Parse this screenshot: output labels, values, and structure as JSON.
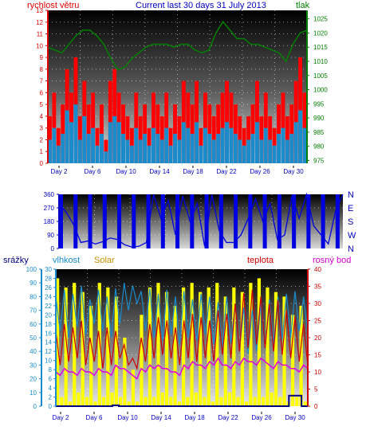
{
  "header": {
    "title": "Current last 30 days 31 July 2013",
    "left_label": "rychlost větru",
    "right_label": "tlak"
  },
  "bottom_header": {
    "rain": "srážky",
    "humidity": "vlhkost",
    "solar": "Solar",
    "temperature": "teplota",
    "dewpoint": "rosný bod"
  },
  "colors": {
    "wind_gust": "#ff0000",
    "wind_avg": "#1a8ccc",
    "pressure": "#008000",
    "direction": "#0000e0",
    "humidity": "#1a8ccc",
    "solar": "#ffff00",
    "temperature": "#cc0000",
    "dewpoint": "#e000e0",
    "rain": "#000080",
    "axis_labels": "#0000c0"
  },
  "chart_data": [
    {
      "type": "line",
      "id": "wind_pressure",
      "title": "Current last 30 days 31 July 2013",
      "x_tick_labels": [
        "Day 2",
        "Day 6",
        "Day 10",
        "Day 14",
        "Day 18",
        "Day 22",
        "Day 26",
        "Day 30"
      ],
      "y_left_label": "rychlost větru",
      "y_left_ticks": [
        0,
        1,
        2,
        3,
        4,
        5,
        6,
        7,
        8,
        9,
        10,
        11,
        12,
        13
      ],
      "y_left_range": [
        0,
        13
      ],
      "y_right_label": "tlak",
      "y_right_ticks": [
        975,
        980,
        985,
        990,
        995,
        1000,
        1005,
        1010,
        1015,
        1020,
        1025
      ],
      "y_right_range": [
        974,
        1028
      ],
      "grid": true,
      "series": [
        {
          "name": "wind gust",
          "axis": "left",
          "style": "bars",
          "values": [
            4,
            6,
            3,
            5,
            8,
            6,
            9,
            4,
            7,
            5,
            6,
            3,
            5,
            2,
            7,
            8,
            6,
            5,
            4,
            3,
            6,
            4,
            5,
            3,
            6,
            5,
            4,
            6,
            3,
            5,
            4,
            7,
            6,
            5,
            7,
            3,
            6,
            5,
            4,
            5,
            6,
            7,
            6,
            5,
            4,
            3,
            4,
            5,
            7,
            4,
            6,
            4,
            3,
            5,
            6,
            4,
            5,
            7,
            9,
            6
          ]
        },
        {
          "name": "wind avg",
          "axis": "left",
          "style": "bars",
          "values": [
            2,
            3,
            1.5,
            2.5,
            4.5,
            3.5,
            5,
            2,
            4,
            2.5,
            3,
            1.5,
            2.5,
            1,
            3.5,
            4,
            3.5,
            2.5,
            2,
            1.5,
            3,
            2,
            2.5,
            1.5,
            3,
            2.5,
            2,
            3,
            1.5,
            2.5,
            2,
            3.5,
            3,
            2.5,
            3.5,
            1.5,
            3,
            2.5,
            2,
            2.5,
            3,
            3.5,
            3,
            2.5,
            2,
            1.5,
            2,
            2.5,
            3.5,
            2,
            3,
            2,
            1.5,
            2.5,
            3,
            2,
            2.5,
            3.5,
            4.5,
            3
          ]
        },
        {
          "name": "pressure",
          "axis": "right",
          "style": "line",
          "values": [
            1015,
            1014,
            1013,
            1016,
            1019,
            1021,
            1021,
            1019,
            1016,
            1011,
            1007,
            1008,
            1011,
            1013,
            1015,
            1016,
            1016,
            1016,
            1015,
            1016,
            1016,
            1014,
            1013,
            1014,
            1020,
            1024,
            1021,
            1018,
            1018,
            1016,
            1016,
            1015,
            1014,
            1013,
            1010,
            1016,
            1020,
            1021
          ]
        }
      ]
    },
    {
      "type": "line",
      "id": "wind_direction",
      "x_tick_labels": [],
      "y_left_ticks": [
        0,
        90,
        180,
        270,
        360
      ],
      "y_left_range": [
        0,
        360
      ],
      "y_right_labels": [
        "N",
        "W",
        "S",
        "E",
        "N"
      ],
      "grid": true,
      "series": [
        {
          "name": "wind direction",
          "style": "line",
          "values": [
            300,
            240,
            160,
            40,
            50,
            30,
            45,
            70,
            60,
            25,
            10,
            15,
            40,
            360,
            200,
            320,
            90,
            350,
            180,
            300,
            15,
            360,
            120,
            40,
            40,
            90,
            200,
            330,
            180,
            300,
            60,
            90,
            350,
            200,
            360,
            150,
            90,
            30,
            250,
            360
          ]
        }
      ]
    },
    {
      "type": "line",
      "id": "temp_humidity_solar_rain",
      "x_tick_labels": [
        "Day 2",
        "Day 6",
        "Day 10",
        "Day 14",
        "Day 18",
        "Day 22",
        "Day 26",
        "Day 30"
      ],
      "y_left_rain_ticks": [
        0,
        10,
        20,
        30,
        40,
        50,
        60,
        70,
        80,
        90,
        100
      ],
      "y_left_inner_ticks": [
        0,
        2,
        4,
        6,
        8,
        10,
        12,
        14,
        16,
        18,
        20,
        22,
        24,
        26,
        28,
        30
      ],
      "y_right_ticks": [
        0,
        5,
        10,
        15,
        20,
        25,
        30,
        35,
        40
      ],
      "y_right_range": [
        0,
        40
      ],
      "y_left_range": [
        0,
        30
      ],
      "grid": true,
      "series": [
        {
          "name": "Solar",
          "style": "area",
          "values": [
            28,
            2,
            26,
            1,
            27,
            3,
            25,
            2,
            22,
            1,
            27,
            2,
            26,
            3,
            24,
            2,
            15,
            1,
            8,
            1,
            20,
            2,
            26,
            2,
            27,
            3,
            25,
            2,
            22,
            1,
            26,
            2,
            27,
            3,
            25,
            2,
            26,
            1,
            27,
            2,
            24,
            3,
            26,
            2,
            25,
            1,
            27,
            2,
            28,
            2,
            26,
            3,
            25,
            2,
            24,
            1,
            20,
            2,
            22,
            1
          ]
        },
        {
          "name": "teplota",
          "style": "line",
          "values": [
            22,
            12,
            24,
            13,
            23,
            14,
            25,
            12,
            20,
            13,
            22,
            11,
            23,
            12,
            22,
            14,
            18,
            12,
            14,
            11,
            20,
            13,
            24,
            14,
            26,
            15,
            25,
            14,
            23,
            12,
            25,
            14,
            27,
            13,
            26,
            14,
            25,
            13,
            28,
            15,
            27,
            14,
            30,
            16,
            33,
            17,
            34,
            18,
            32,
            17,
            30,
            16,
            31,
            15,
            28,
            14,
            26,
            13,
            24,
            12
          ]
        },
        {
          "name": "rosný bod",
          "style": "line",
          "values": [
            10,
            9,
            11,
            10,
            10,
            9,
            11,
            10,
            10,
            9,
            11,
            10,
            10,
            9,
            12,
            11,
            11,
            10,
            9,
            8,
            11,
            10,
            12,
            11,
            12,
            11,
            11,
            10,
            10,
            9,
            12,
            11,
            13,
            12,
            12,
            11,
            13,
            12,
            14,
            12,
            12,
            11,
            13,
            12,
            14,
            13,
            13,
            12,
            14,
            13,
            12,
            11,
            13,
            12,
            12,
            11,
            11,
            10,
            12,
            11
          ]
        },
        {
          "name": "vlhkost",
          "style": "line",
          "values": [
            80,
            55,
            85,
            50,
            82,
            58,
            88,
            52,
            78,
            60,
            85,
            55,
            80,
            50,
            86,
            60,
            90,
            70,
            88,
            75,
            84,
            55,
            86,
            50,
            82,
            48,
            85,
            52,
            80,
            45,
            84,
            50,
            78,
            48,
            82,
            52,
            80,
            45,
            76,
            42,
            80,
            46,
            74,
            40,
            72,
            38,
            70,
            40,
            75,
            42,
            78,
            45,
            80,
            48,
            82,
            50,
            84,
            55,
            80,
            52
          ]
        },
        {
          "name": "srážky",
          "style": "step",
          "values": [
            0,
            0,
            0,
            0,
            0,
            0,
            0,
            0,
            0,
            0.5,
            0,
            0,
            0,
            0,
            0,
            0,
            0,
            0,
            0,
            0,
            0,
            0,
            0,
            0,
            0,
            0,
            0,
            0,
            0,
            0,
            0,
            0,
            0,
            0,
            0,
            0,
            0,
            6,
            6,
            0
          ]
        }
      ]
    }
  ]
}
